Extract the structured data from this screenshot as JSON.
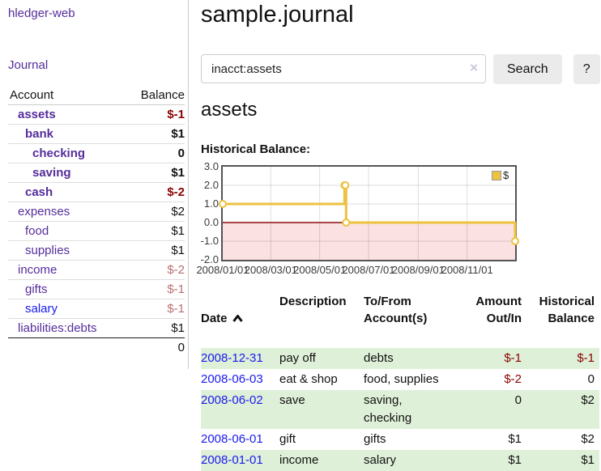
{
  "colors": {
    "link_purple": "#552d9b",
    "link_blue": "#1a1aee",
    "negative_strong": "#8b0000",
    "negative_soft": "#bb6e6e",
    "row_green": "#dff0d8",
    "series_gold": "#edc240",
    "chart_negative_fill": "#fbe1e1",
    "chart_zero_line": "#8b0f0f"
  },
  "app_title": "hledger-web",
  "sidebar": {
    "journal_link": "Journal",
    "accounts_table": {
      "headers": {
        "account": "Account",
        "balance": "Balance"
      },
      "rows": [
        {
          "name": "assets",
          "indent": 1,
          "bold": true,
          "balance": "$-1",
          "balance_class": "neg"
        },
        {
          "name": "bank",
          "indent": 2,
          "bold": true,
          "balance": "$1",
          "balance_class": "pos"
        },
        {
          "name": "checking",
          "indent": 3,
          "bold": true,
          "balance": "0",
          "balance_class": "pos"
        },
        {
          "name": "saving",
          "indent": 3,
          "bold": true,
          "balance": "$1",
          "balance_class": "pos"
        },
        {
          "name": "cash",
          "indent": 2,
          "bold": true,
          "balance": "$-2",
          "balance_class": "neg"
        },
        {
          "name": "expenses",
          "indent": 1,
          "bold": false,
          "balance": "$2",
          "balance_class": "pos"
        },
        {
          "name": "food",
          "indent": 2,
          "bold": false,
          "balance": "$1",
          "balance_class": "pos"
        },
        {
          "name": "supplies",
          "indent": 2,
          "bold": false,
          "balance": "$1",
          "balance_class": "pos"
        },
        {
          "name": "income",
          "indent": 1,
          "bold": false,
          "balance": "$-2",
          "balance_class": "neg-soft"
        },
        {
          "name": "gifts",
          "indent": 2,
          "bold": false,
          "balance": "$-1",
          "balance_class": "neg-soft"
        },
        {
          "name": "salary",
          "indent": 2,
          "bold": false,
          "link": "blue",
          "balance": "$-1",
          "balance_class": "neg-soft"
        },
        {
          "name": "liabilities:debts",
          "indent": 1,
          "bold": false,
          "balance": "$1",
          "balance_class": "pos"
        }
      ],
      "total": "0"
    }
  },
  "main": {
    "title": "sample.journal",
    "search": {
      "value": "inacct:assets",
      "clear_icon": "×",
      "search_button": "Search",
      "help_button": "?"
    },
    "account_heading": "assets",
    "chart_label": "Historical Balance:",
    "register": {
      "headers": {
        "date": "Date",
        "description": "Description",
        "accounts": "To/From\nAccount(s)",
        "amount": "Amount\nOut/In",
        "balance": "Historical\nBalance"
      },
      "rows": [
        {
          "date": "2008-12-31",
          "description": "pay off",
          "accounts": "debts",
          "amount": "$-1",
          "amount_class": "neg",
          "balance": "$-1",
          "balance_class": "neg",
          "shaded": true
        },
        {
          "date": "2008-06-03",
          "description": "eat & shop",
          "accounts": "food, supplies",
          "amount": "$-2",
          "amount_class": "neg",
          "balance": "0",
          "balance_class": "pos",
          "shaded": false
        },
        {
          "date": "2008-06-02",
          "description": "save",
          "accounts": "saving,\nchecking",
          "amount": "0",
          "amount_class": "pos",
          "balance": "$2",
          "balance_class": "pos",
          "shaded": true
        },
        {
          "date": "2008-06-01",
          "description": "gift",
          "accounts": "gifts",
          "amount": "$1",
          "amount_class": "pos",
          "balance": "$2",
          "balance_class": "pos",
          "shaded": false
        },
        {
          "date": "2008-01-01",
          "description": "income",
          "accounts": "salary",
          "amount": "$1",
          "amount_class": "pos",
          "balance": "$1",
          "balance_class": "pos",
          "shaded": true
        }
      ]
    }
  },
  "chart_data": {
    "type": "line",
    "title": "Historical Balance:",
    "step": true,
    "series": [
      {
        "name": "$",
        "points": [
          [
            "2008-01-01",
            1
          ],
          [
            "2008-06-01",
            2
          ],
          [
            "2008-06-02",
            2
          ],
          [
            "2008-06-03",
            0
          ],
          [
            "2008-12-31",
            -1
          ]
        ]
      }
    ],
    "xlim": [
      "2008-01-01",
      "2008-12-31"
    ],
    "ylim": [
      -2,
      3
    ],
    "x_ticks": [
      {
        "date": "2008-01-01",
        "label": "2008/01/01"
      },
      {
        "date": "2008-03-01",
        "label": "2008/03/01"
      },
      {
        "date": "2008-05-01",
        "label": "2008/05/01"
      },
      {
        "date": "2008-07-01",
        "label": "2008/07/01"
      },
      {
        "date": "2008-09-01",
        "label": "2008/09/01"
      },
      {
        "date": "2008-11-01",
        "label": "2008/11/01"
      }
    ],
    "y_ticks": [
      3,
      2,
      1,
      0,
      -1,
      -2
    ],
    "grid": true,
    "legend": {
      "position": "top-right",
      "label": "$"
    }
  }
}
